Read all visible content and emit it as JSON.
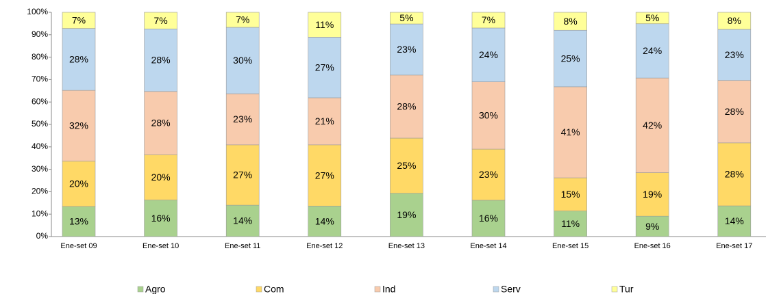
{
  "chart_data": {
    "type": "stacked_bar",
    "categories": [
      "Ene-set 09",
      "Ene-set 10",
      "Ene-set 11",
      "Ene-set 12",
      "Ene-set 13",
      "Ene-set 14",
      "Ene-set 15",
      "Ene-set 16",
      "Ene-set 17"
    ],
    "series": [
      {
        "name": "Agro",
        "color": "#a9d18e",
        "values": [
          13.4,
          16.3,
          14.0,
          13.6,
          19.3,
          16.2,
          11.4,
          9.1,
          13.7
        ],
        "value_labels": [
          "13%",
          "16%",
          "14%",
          "14%",
          "19%",
          "16%",
          "11%",
          "9%",
          "14%"
        ]
      },
      {
        "name": "Com",
        "color": "#ffd966",
        "values": [
          20.2,
          20.2,
          26.9,
          27.3,
          24.6,
          22.8,
          14.8,
          19.4,
          28.1
        ],
        "value_labels": [
          "20%",
          "20%",
          "27%",
          "27%",
          "25%",
          "23%",
          "15%",
          "19%",
          "28%"
        ]
      },
      {
        "name": "Ind",
        "color": "#f8cbad",
        "values": [
          31.6,
          28.2,
          22.8,
          21.0,
          28.1,
          30.0,
          40.6,
          42.2,
          27.8
        ],
        "value_labels": [
          "32%",
          "28%",
          "23%",
          "21%",
          "28%",
          "30%",
          "41%",
          "42%",
          "28%"
        ]
      },
      {
        "name": "Serv",
        "color": "#bdd7ee",
        "values": [
          27.6,
          27.9,
          29.6,
          27.0,
          22.8,
          24.0,
          25.2,
          24.2,
          22.8
        ],
        "value_labels": [
          "28%",
          "28%",
          "30%",
          "27%",
          "23%",
          "24%",
          "25%",
          "24%",
          "23%"
        ]
      },
      {
        "name": "Tur",
        "color": "#ffff99",
        "values": [
          7.2,
          7.4,
          6.7,
          11.1,
          5.2,
          7.0,
          8.0,
          5.1,
          7.6
        ],
        "value_labels": [
          "7%",
          "7%",
          "7%",
          "11%",
          "5%",
          "7%",
          "8%",
          "5%",
          "8%"
        ]
      }
    ],
    "ylim": [
      0,
      100
    ],
    "yticks": [
      {
        "value": 0,
        "label": "0%"
      },
      {
        "value": 10,
        "label": "10%"
      },
      {
        "value": 20,
        "label": "20%"
      },
      {
        "value": 30,
        "label": "30%"
      },
      {
        "value": 40,
        "label": "40%"
      },
      {
        "value": 50,
        "label": "50%"
      },
      {
        "value": 60,
        "label": "60%"
      },
      {
        "value": 70,
        "label": "70%"
      },
      {
        "value": 80,
        "label": "80%"
      },
      {
        "value": 90,
        "label": "90%"
      },
      {
        "value": 100,
        "label": "100%"
      }
    ],
    "legend": "bottom"
  }
}
